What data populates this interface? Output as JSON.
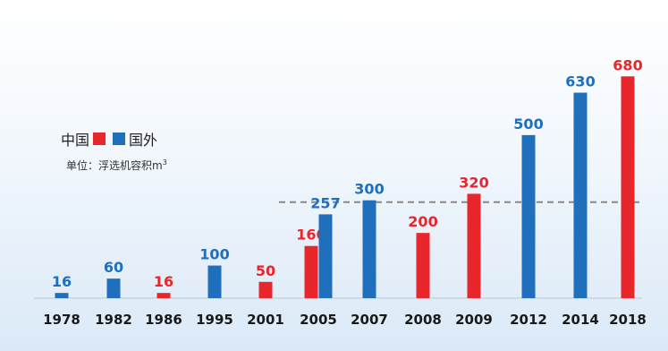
{
  "chart_data": {
    "type": "bar",
    "categories": [
      "1978",
      "1982",
      "1986",
      "1995",
      "2001",
      "2005",
      "2007",
      "2008",
      "2009",
      "2012",
      "2014",
      "2018"
    ],
    "series": [
      {
        "name": "中国",
        "color": "#e8262b",
        "values": [
          null,
          null,
          16,
          null,
          50,
          160,
          null,
          200,
          320,
          null,
          null,
          680
        ]
      },
      {
        "name": "国外",
        "color": "#1f6fbd",
        "values": [
          16,
          60,
          null,
          100,
          null,
          257,
          300,
          null,
          null,
          500,
          630,
          null
        ]
      }
    ],
    "reference_line": 300,
    "ylim": [
      0,
      700
    ],
    "unit_label": "单位：浮选机容积m",
    "unit_superscript": "3",
    "grid": false,
    "legend_position": "left"
  }
}
